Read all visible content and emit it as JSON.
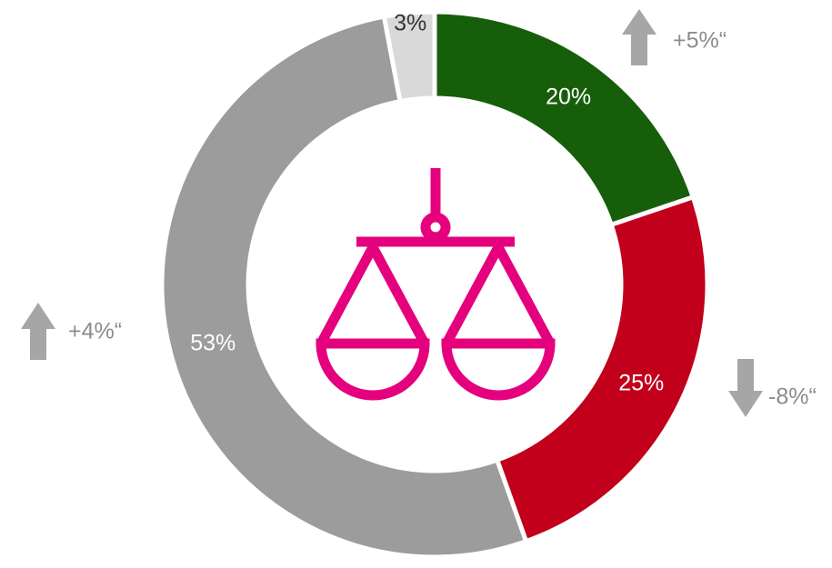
{
  "chart_data": {
    "type": "donut",
    "categories": null,
    "values": [
      20,
      25,
      53,
      3
    ],
    "value_labels": [
      "20%",
      "25%",
      "53%",
      "3%"
    ],
    "colors": [
      "#175e0b",
      "#c2001b",
      "#9c9c9c",
      "#d9d9d9"
    ],
    "label_colors": [
      "#ffffff",
      "#ffffff",
      "#ffffff",
      "#333333"
    ],
    "annotations": [
      "+5%“",
      "-8%“",
      "+4%“"
    ]
  }
}
